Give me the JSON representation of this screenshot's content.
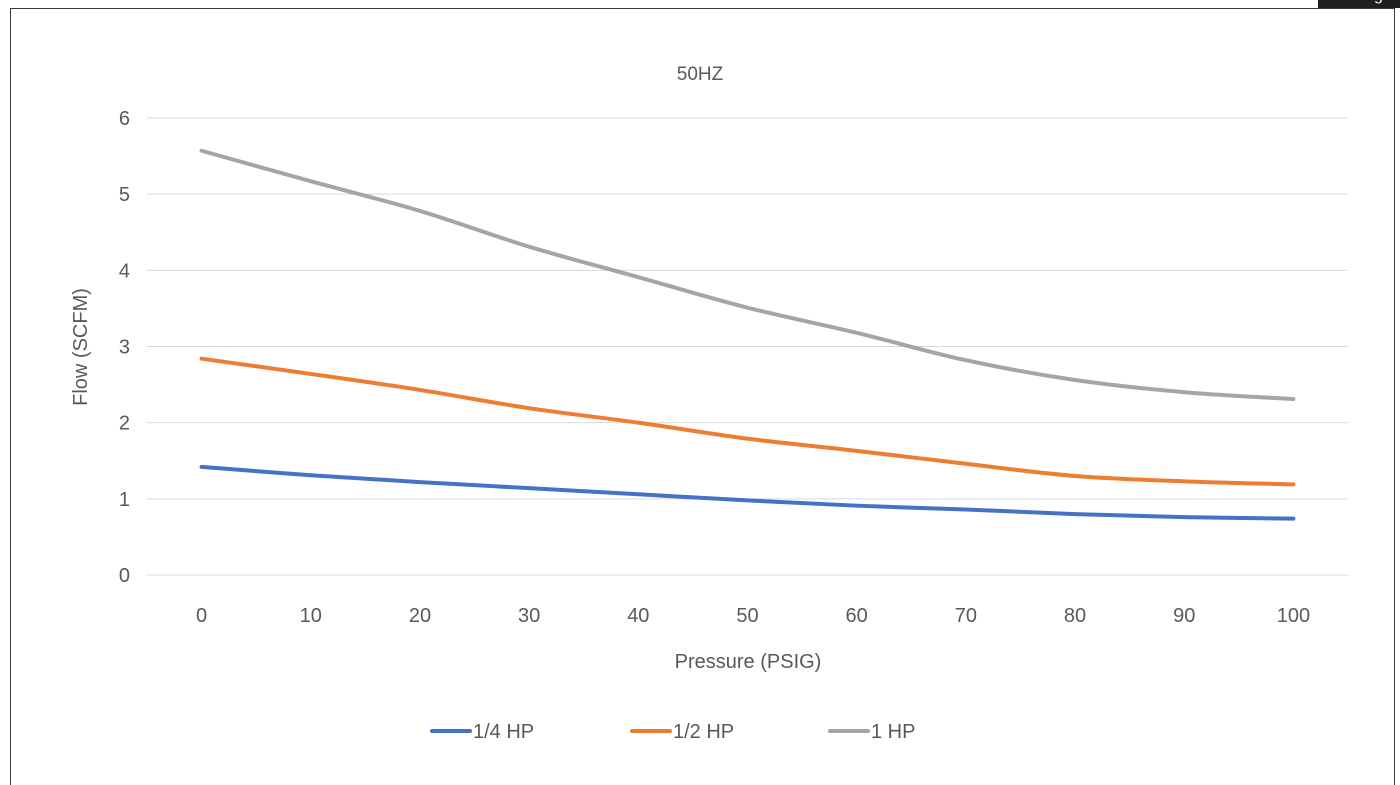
{
  "corner_tab": {
    "text": "g"
  },
  "chart_data": {
    "type": "line",
    "title": "50HZ",
    "xlabel": "Pressure (PSIG)",
    "ylabel": "Flow (SCFM)",
    "categories": [
      0,
      10,
      20,
      30,
      40,
      50,
      60,
      70,
      80,
      90,
      100
    ],
    "ylim": [
      0,
      6
    ],
    "yticks": [
      0,
      1,
      2,
      3,
      4,
      5,
      6
    ],
    "grid": true,
    "legend": "bottom",
    "series": [
      {
        "name": "1/4 HP",
        "color": "#4472C4",
        "values": [
          1.42,
          1.31,
          1.22,
          1.14,
          1.06,
          0.98,
          0.91,
          0.86,
          0.8,
          0.76,
          0.74
        ]
      },
      {
        "name": "1/2 HP",
        "color": "#ED7D31",
        "values": [
          2.84,
          2.64,
          2.43,
          2.19,
          2.0,
          1.79,
          1.63,
          1.46,
          1.3,
          1.23,
          1.19
        ]
      },
      {
        "name": "1 HP",
        "color": "#A5A5A5",
        "values": [
          5.57,
          5.17,
          4.78,
          4.31,
          3.91,
          3.51,
          3.18,
          2.82,
          2.56,
          2.4,
          2.31
        ]
      }
    ]
  }
}
